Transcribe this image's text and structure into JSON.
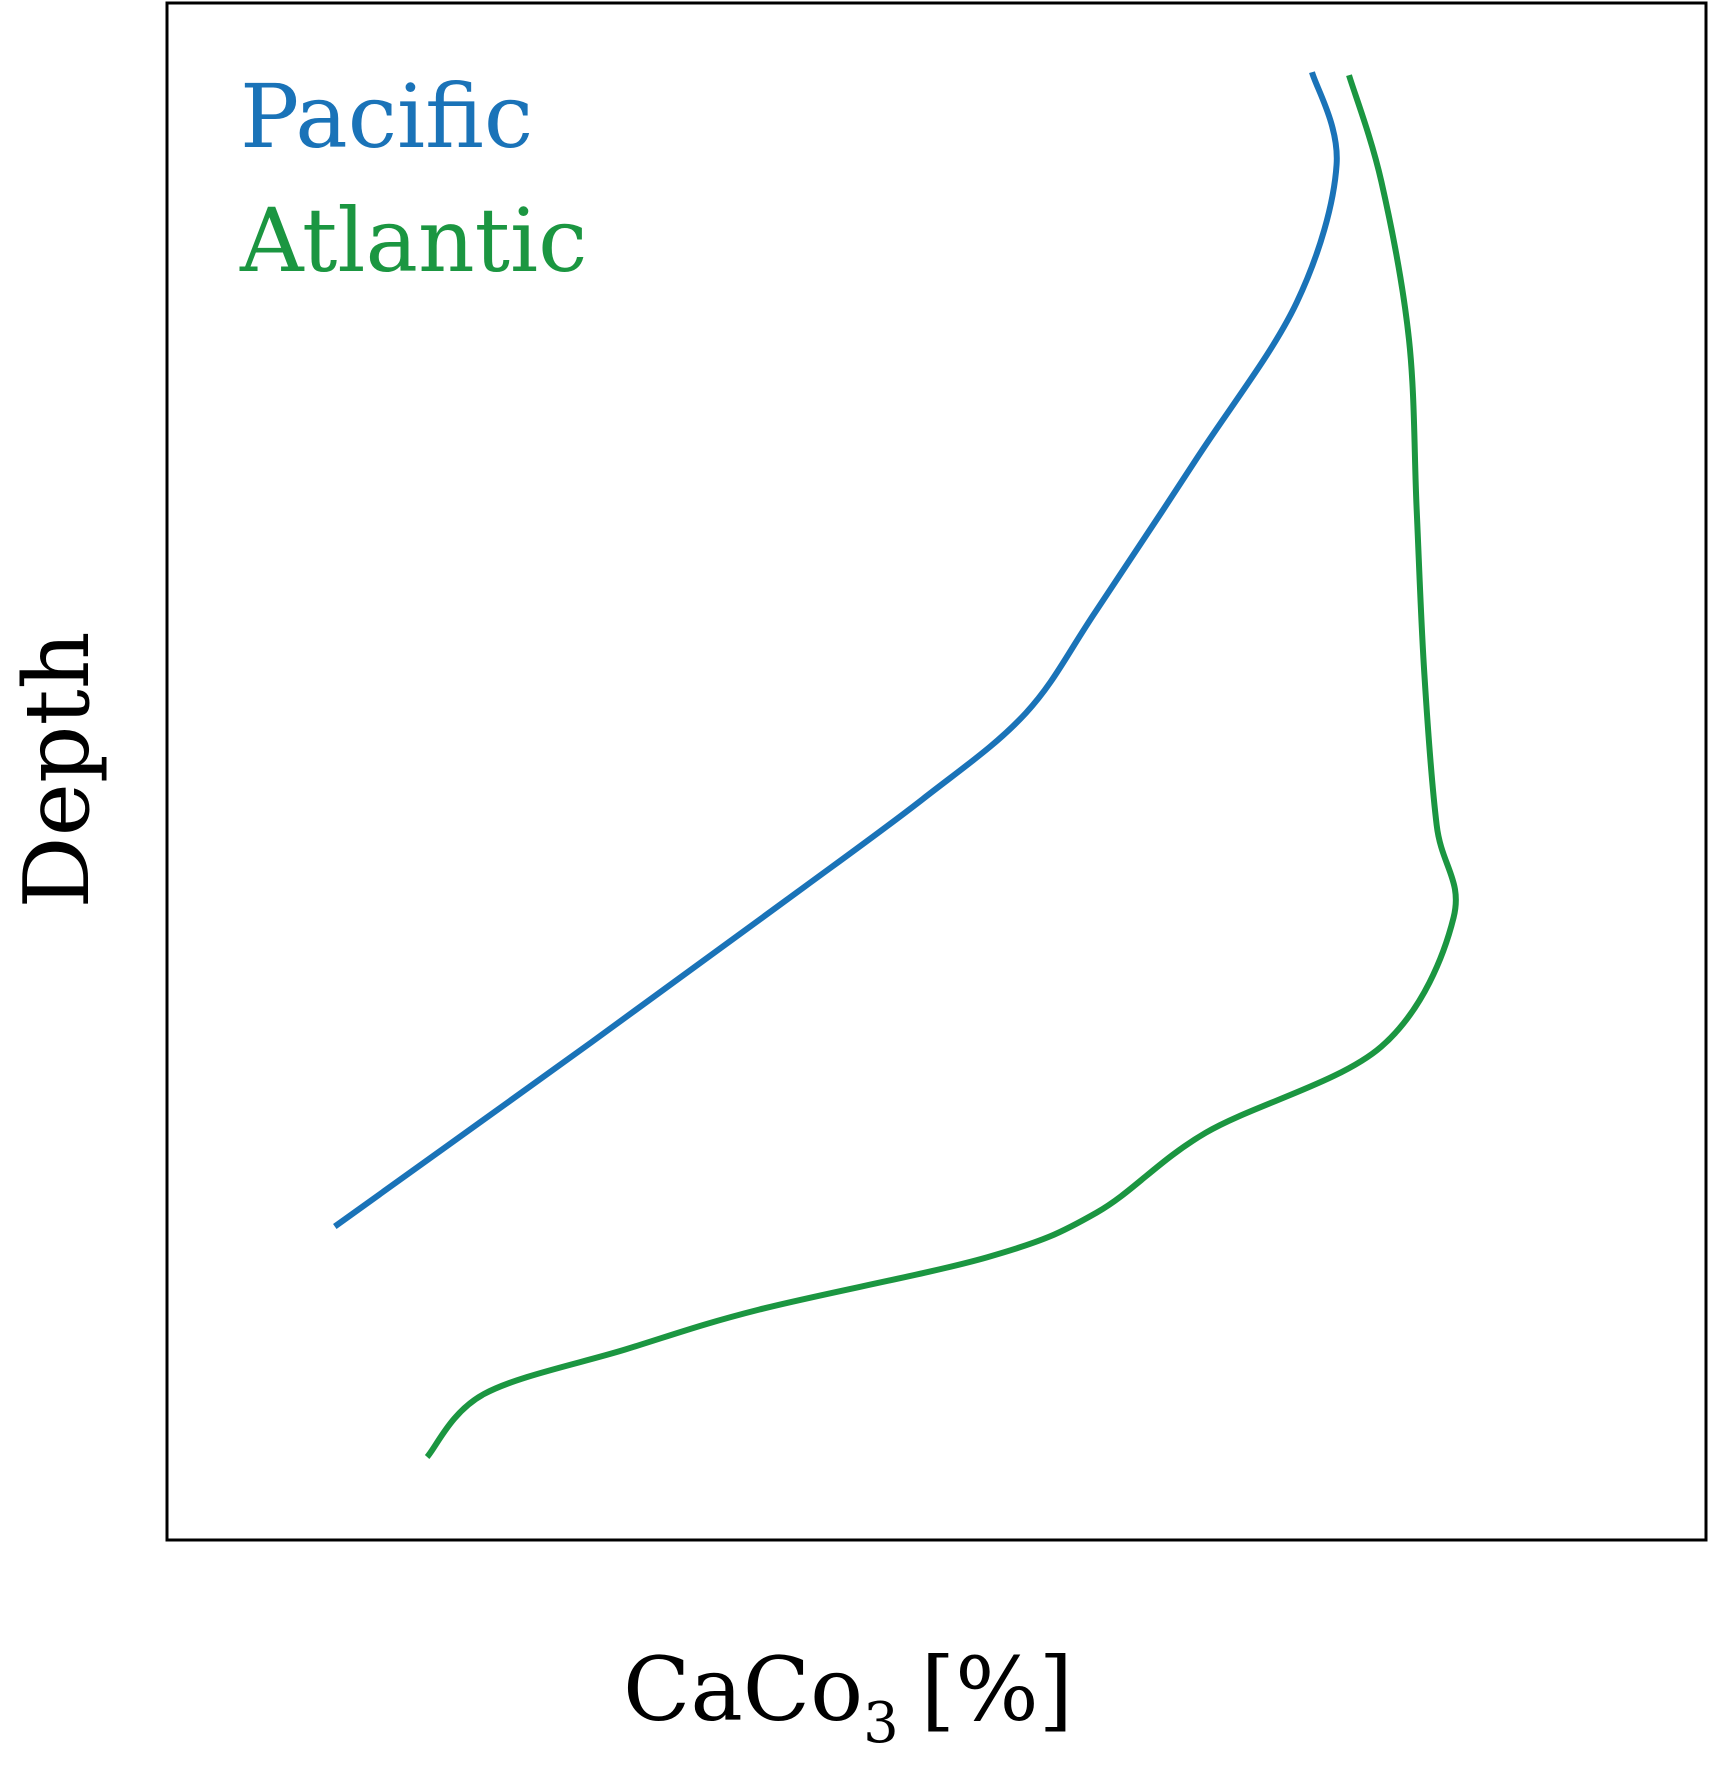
{
  "chart_data": {
    "type": "line",
    "title": "",
    "xlabel": "CaCo",
    "xlabel_subscript": "3",
    "xlabel_unit": "[%]",
    "ylabel": "Depth",
    "y_axis_inverted": true,
    "xlim": [
      0,
      100
    ],
    "ylim": [
      0,
      100
    ],
    "ticks": "none",
    "grid": false,
    "legend": {
      "placement": "top-left",
      "style": "colored-text"
    },
    "series": [
      {
        "name": "Pacific",
        "color": "#1a73b8",
        "points": [
          [
            74.4,
            4.5
          ],
          [
            76.0,
            10.5
          ],
          [
            73.4,
            19.5
          ],
          [
            67.0,
            29.5
          ],
          [
            60.4,
            39.5
          ],
          [
            55.8,
            46.2
          ],
          [
            49.1,
            51.8
          ],
          [
            40.2,
            58.4
          ],
          [
            27.6,
            67.6
          ],
          [
            10.9,
            79.6
          ]
        ]
      },
      {
        "name": "Atlantic",
        "color": "#1b9641",
        "points": [
          [
            76.8,
            4.7
          ],
          [
            78.9,
            11.6
          ],
          [
            80.7,
            21.9
          ],
          [
            81.2,
            33.0
          ],
          [
            81.7,
            43.7
          ],
          [
            82.5,
            53.5
          ],
          [
            83.6,
            59.5
          ],
          [
            78.9,
            67.9
          ],
          [
            67.5,
            73.5
          ],
          [
            60.4,
            78.7
          ],
          [
            53.3,
            81.6
          ],
          [
            38.5,
            85.0
          ],
          [
            29.8,
            87.6
          ],
          [
            20.6,
            90.5
          ],
          [
            16.9,
            94.6
          ]
        ]
      }
    ]
  }
}
